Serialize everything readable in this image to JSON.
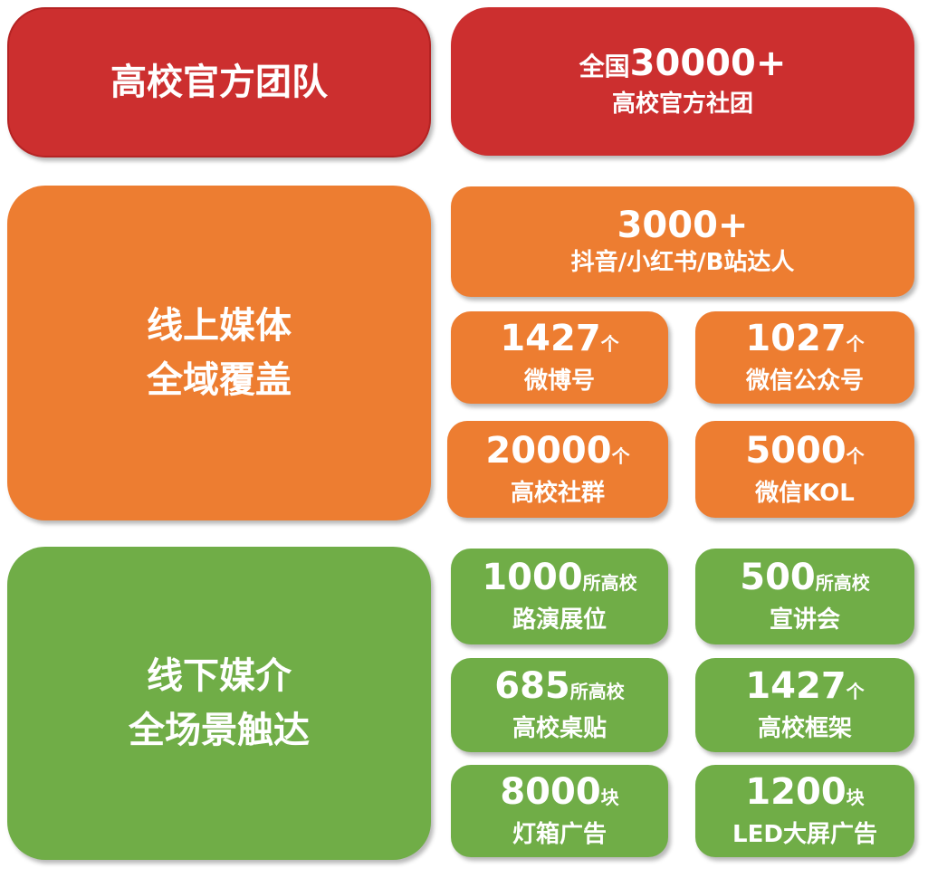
{
  "colors": {
    "red": "#CC2F2F",
    "orange": "#ED7D31",
    "green": "#70AD47"
  },
  "team": {
    "title": "高校官方团队",
    "stat": {
      "prefix": "全国",
      "number": "30000+",
      "label": "高校官方社团"
    }
  },
  "online": {
    "title_lines": [
      "线上媒体",
      "全域覆盖"
    ],
    "headline": {
      "number": "3000+",
      "label": "抖音/小红书/B站达人"
    },
    "stats": [
      {
        "number": "1427",
        "unit": "个",
        "label": "微博号"
      },
      {
        "number": "1027",
        "unit": "个",
        "label": "微信公众号"
      },
      {
        "number": "20000",
        "unit": "个",
        "label": "高校社群"
      },
      {
        "number": "5000",
        "unit": "个",
        "label": "微信KOL"
      }
    ]
  },
  "offline": {
    "title_lines": [
      "线下媒介",
      "全场景触达"
    ],
    "stats": [
      {
        "number": "1000",
        "unit": "所高校",
        "label": "路演展位"
      },
      {
        "number": "500",
        "unit": "所高校",
        "label": "宣讲会"
      },
      {
        "number": "685",
        "unit": "所高校",
        "label": "高校桌贴"
      },
      {
        "number": "1427",
        "unit": "个",
        "label": "高校框架"
      },
      {
        "number": "8000",
        "unit": "块",
        "label": "灯箱广告"
      },
      {
        "number": "1200",
        "unit": "块",
        "label": "LED大屏广告"
      }
    ]
  }
}
